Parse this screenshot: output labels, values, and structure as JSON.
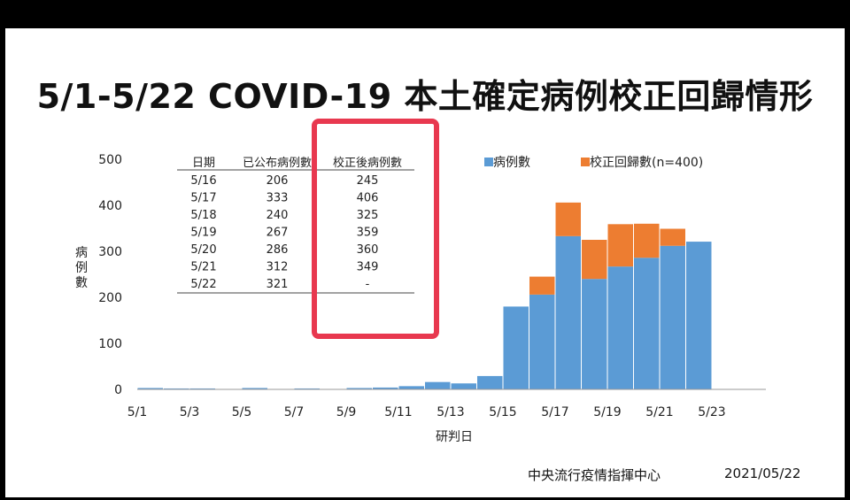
{
  "title": "5/1-5/22 COVID-19 本土確定病例校正回歸情形",
  "footer": {
    "org": "中央流行疫情指揮中心",
    "date": "2021/05/22"
  },
  "table": {
    "headers": [
      "日期",
      "已公布病例數",
      "校正後病例數"
    ],
    "rows": [
      [
        "5/16",
        "206",
        "245"
      ],
      [
        "5/17",
        "333",
        "406"
      ],
      [
        "5/18",
        "240",
        "325"
      ],
      [
        "5/19",
        "267",
        "359"
      ],
      [
        "5/20",
        "286",
        "360"
      ],
      [
        "5/21",
        "312",
        "349"
      ],
      [
        "5/22",
        "321",
        "-"
      ]
    ]
  },
  "colors": {
    "cases": "#5B9BD5",
    "correction": "#ED7D31",
    "highlight": "#E8384F"
  },
  "chart_data": {
    "type": "bar",
    "stacked": true,
    "categories": [
      "5/1",
      "5/2",
      "5/3",
      "5/4",
      "5/5",
      "5/6",
      "5/7",
      "5/8",
      "5/9",
      "5/10",
      "5/11",
      "5/12",
      "5/13",
      "5/14",
      "5/15",
      "5/16",
      "5/17",
      "5/18",
      "5/19",
      "5/20",
      "5/21",
      "5/22"
    ],
    "series": [
      {
        "name": "病例數",
        "values": [
          3,
          2,
          2,
          0,
          3,
          0,
          2,
          0,
          3,
          4,
          7,
          16,
          13,
          29,
          180,
          206,
          333,
          240,
          267,
          286,
          312,
          321
        ]
      },
      {
        "name": "校正回歸數(n=400)",
        "values": [
          0,
          0,
          0,
          0,
          0,
          0,
          0,
          0,
          0,
          0,
          0,
          0,
          0,
          0,
          0,
          39,
          73,
          85,
          92,
          74,
          37,
          0
        ]
      }
    ],
    "x_tick_labels": [
      "5/1",
      "5/3",
      "5/5",
      "5/7",
      "5/9",
      "5/11",
      "5/13",
      "5/15",
      "5/17",
      "5/19",
      "5/21",
      "5/23"
    ],
    "y_ticks": [
      0,
      100,
      200,
      300,
      400,
      500
    ],
    "ylim": [
      0,
      500
    ],
    "xlabel": "研判日",
    "ylabel": "病例數",
    "legend": "top-right"
  }
}
